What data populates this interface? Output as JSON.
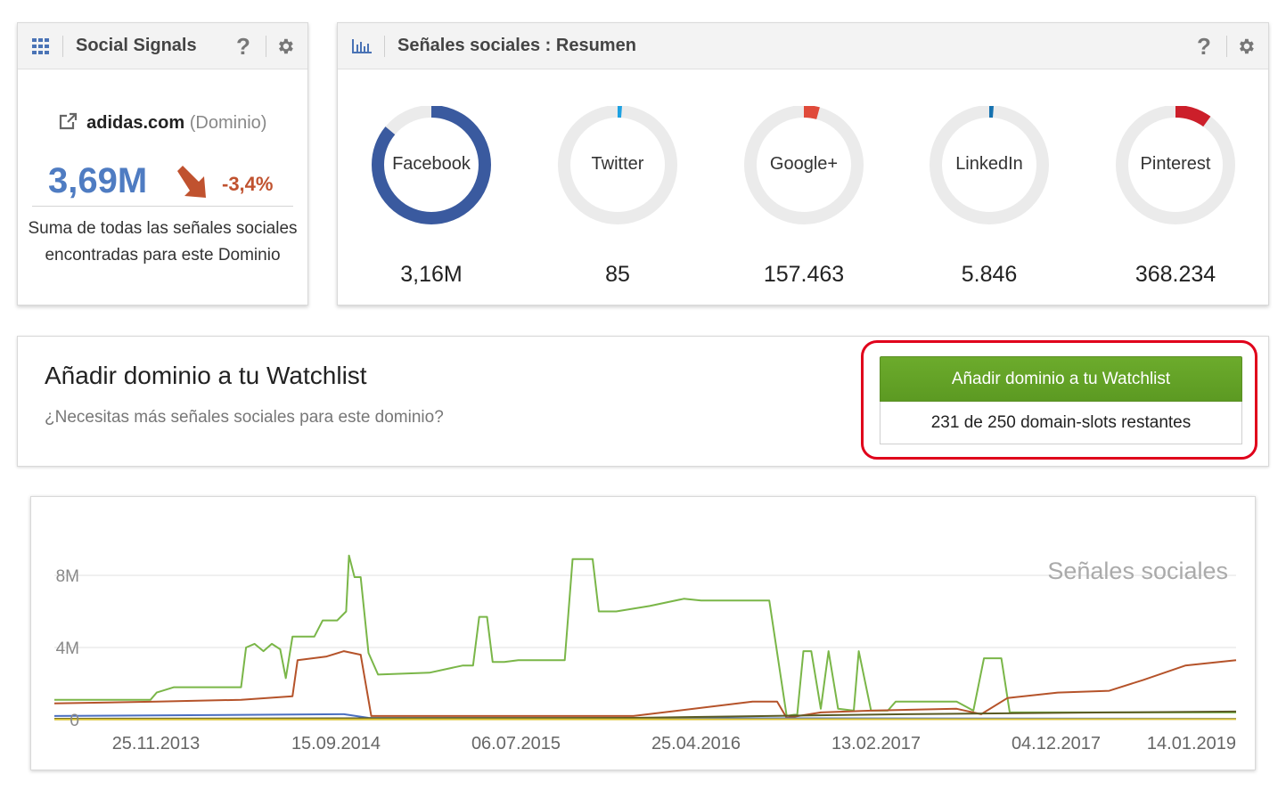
{
  "social_signals": {
    "title": "Social Signals",
    "help_icon": "question-icon",
    "settings_icon": "gear-icon",
    "grid_icon": "grid-icon",
    "domain": "adidas.com",
    "domain_type": "(Dominio)",
    "total": "3,69M",
    "change": "-3,4%",
    "trend": "down",
    "description": "Suma de todas las señales sociales encontradas para este Dominio"
  },
  "summary": {
    "title": "Señales sociales : Resumen",
    "chart_icon": "bar-chart-icon",
    "networks": [
      {
        "name": "Facebook",
        "value": "3,16M",
        "share": 0.86,
        "color": "#3a5a9f"
      },
      {
        "name": "Twitter",
        "value": "85",
        "share": 0.003,
        "color": "#1da1e2"
      },
      {
        "name": "Google+",
        "value": "157.463",
        "share": 0.043,
        "color": "#e04a3a"
      },
      {
        "name": "LinkedIn",
        "value": "5.846",
        "share": 0.002,
        "color": "#1672b0"
      },
      {
        "name": "Pinterest",
        "value": "368.234",
        "share": 0.1,
        "color": "#cc1f2a"
      }
    ]
  },
  "watchlist": {
    "title": "Añadir dominio a tu Watchlist",
    "subtitle": "¿Necesitas más señales sociales para este dominio?",
    "button_label": "Añadir dominio a tu Watchlist",
    "slots_text": "231 de 250 domain-slots restantes"
  },
  "chart_data": {
    "type": "line",
    "title": "Señales sociales",
    "x_tick_labels": [
      "25.11.2013",
      "15.09.2014",
      "06.07.2015",
      "25.04.2016",
      "13.02.2017",
      "04.12.2017",
      "14.01.2019"
    ],
    "y_tick_labels": [
      "0",
      "4M",
      "8M"
    ],
    "ylim": [
      0,
      9200000
    ],
    "x_range": [
      "2013-04-01",
      "2019-01-14"
    ],
    "grid": true,
    "series": [
      {
        "color": "#7ab648",
        "points": [
          [
            "2013-04-01",
            1100000
          ],
          [
            "2013-09-20",
            1100000
          ],
          [
            "2013-10-01",
            1500000
          ],
          [
            "2013-11-01",
            1800000
          ],
          [
            "2014-03-01",
            1800000
          ],
          [
            "2014-03-10",
            4000000
          ],
          [
            "2014-03-25",
            4200000
          ],
          [
            "2014-04-10",
            3800000
          ],
          [
            "2014-04-25",
            4200000
          ],
          [
            "2014-05-10",
            3900000
          ],
          [
            "2014-05-20",
            2300000
          ],
          [
            "2014-06-01",
            4600000
          ],
          [
            "2014-07-10",
            4600000
          ],
          [
            "2014-07-25",
            5500000
          ],
          [
            "2014-08-20",
            5500000
          ],
          [
            "2014-09-05",
            6000000
          ],
          [
            "2014-09-10",
            9100000
          ],
          [
            "2014-09-20",
            7900000
          ],
          [
            "2014-10-01",
            7900000
          ],
          [
            "2014-10-15",
            3700000
          ],
          [
            "2014-11-01",
            2500000
          ],
          [
            "2015-02-01",
            2600000
          ],
          [
            "2015-04-01",
            3000000
          ],
          [
            "2015-04-20",
            3000000
          ],
          [
            "2015-05-01",
            5700000
          ],
          [
            "2015-05-15",
            5700000
          ],
          [
            "2015-05-25",
            3200000
          ],
          [
            "2015-06-15",
            3200000
          ],
          [
            "2015-07-10",
            3300000
          ],
          [
            "2015-10-01",
            3300000
          ],
          [
            "2015-10-15",
            8900000
          ],
          [
            "2015-11-20",
            8900000
          ],
          [
            "2015-12-01",
            6000000
          ],
          [
            "2016-01-01",
            6000000
          ],
          [
            "2016-03-01",
            6300000
          ],
          [
            "2016-05-01",
            6700000
          ],
          [
            "2016-06-01",
            6600000
          ],
          [
            "2016-10-01",
            6600000
          ],
          [
            "2016-11-01",
            200000
          ],
          [
            "2016-11-20",
            300000
          ],
          [
            "2016-12-01",
            3800000
          ],
          [
            "2016-12-15",
            3800000
          ],
          [
            "2017-01-01",
            600000
          ],
          [
            "2017-01-15",
            3800000
          ],
          [
            "2017-02-01",
            600000
          ],
          [
            "2017-03-01",
            500000
          ],
          [
            "2017-03-10",
            3800000
          ],
          [
            "2017-04-01",
            500000
          ],
          [
            "2017-05-01",
            500000
          ],
          [
            "2017-05-15",
            1000000
          ],
          [
            "2017-07-01",
            1000000
          ],
          [
            "2017-09-01",
            1000000
          ],
          [
            "2017-10-01",
            500000
          ],
          [
            "2017-10-20",
            3400000
          ],
          [
            "2017-11-20",
            3400000
          ],
          [
            "2017-12-05",
            400000
          ],
          [
            "2018-06-01",
            400000
          ],
          [
            "2019-01-14",
            400000
          ]
        ]
      },
      {
        "color": "#b5532a",
        "points": [
          [
            "2013-04-01",
            900000
          ],
          [
            "2013-10-01",
            1000000
          ],
          [
            "2014-03-01",
            1100000
          ],
          [
            "2014-06-01",
            1300000
          ],
          [
            "2014-06-10",
            3300000
          ],
          [
            "2014-08-01",
            3500000
          ],
          [
            "2014-09-01",
            3800000
          ],
          [
            "2014-10-01",
            3600000
          ],
          [
            "2014-10-20",
            200000
          ],
          [
            "2015-10-01",
            200000
          ],
          [
            "2016-02-01",
            200000
          ],
          [
            "2016-09-01",
            1000000
          ],
          [
            "2016-10-15",
            1000000
          ],
          [
            "2016-11-01",
            100000
          ],
          [
            "2017-01-01",
            400000
          ],
          [
            "2017-04-01",
            500000
          ],
          [
            "2017-09-01",
            600000
          ],
          [
            "2017-10-15",
            300000
          ],
          [
            "2017-12-01",
            1200000
          ],
          [
            "2018-03-01",
            1500000
          ],
          [
            "2018-06-01",
            1600000
          ],
          [
            "2018-08-01",
            2200000
          ],
          [
            "2018-10-15",
            3000000
          ],
          [
            "2019-01-14",
            3300000
          ]
        ]
      },
      {
        "color": "#4a6fc0",
        "points": [
          [
            "2013-04-01",
            200000
          ],
          [
            "2014-09-01",
            300000
          ],
          [
            "2014-10-15",
            100000
          ],
          [
            "2019-01-14",
            50000
          ]
        ]
      },
      {
        "color": "#5a5a24",
        "points": [
          [
            "2013-04-01",
            50000
          ],
          [
            "2016-02-01",
            100000
          ],
          [
            "2016-10-01",
            200000
          ],
          [
            "2017-06-01",
            300000
          ],
          [
            "2018-06-01",
            400000
          ],
          [
            "2019-01-14",
            450000
          ]
        ]
      },
      {
        "color": "#d9c02f",
        "points": [
          [
            "2013-04-01",
            10000
          ],
          [
            "2019-01-14",
            30000
          ]
        ]
      }
    ]
  }
}
